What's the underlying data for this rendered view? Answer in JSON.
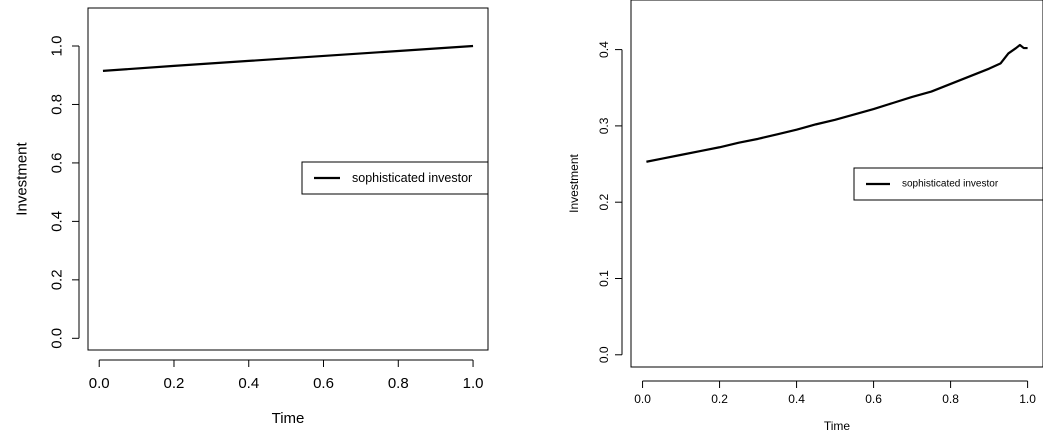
{
  "chart_data": [
    {
      "type": "line",
      "title": "",
      "xlabel": "Time",
      "ylabel": "Investment",
      "xlim": [
        -0.03,
        1.04
      ],
      "ylim": [
        -0.04,
        1.13
      ],
      "xticks": [
        0.0,
        0.2,
        0.4,
        0.6,
        0.8,
        1.0
      ],
      "xtick_labels": [
        "0.0",
        "0.2",
        "0.4",
        "0.6",
        "0.8",
        "1.0"
      ],
      "yticks": [
        0.0,
        0.2,
        0.4,
        0.6,
        0.8,
        1.0
      ],
      "ytick_labels": [
        "0.0",
        "0.2",
        "0.4",
        "0.6",
        "0.8",
        "1.0"
      ],
      "grid": false,
      "legend": "right",
      "series": [
        {
          "name": "sophisticated investor",
          "color": "#000000",
          "x": [
            0.01,
            0.2,
            0.4,
            0.6,
            0.8,
            1.0
          ],
          "y": [
            0.915,
            0.932,
            0.949,
            0.966,
            0.983,
            1.0
          ]
        }
      ]
    },
    {
      "type": "line",
      "title": "",
      "xlabel": "Time",
      "ylabel": "Investment",
      "xlim": [
        -0.03,
        1.04
      ],
      "ylim": [
        -0.016,
        0.465
      ],
      "xticks": [
        0.0,
        0.2,
        0.4,
        0.6,
        0.8,
        1.0
      ],
      "xtick_labels": [
        "0.0",
        "0.2",
        "0.4",
        "0.6",
        "0.8",
        "1.0"
      ],
      "yticks": [
        0.0,
        0.1,
        0.2,
        0.3,
        0.4
      ],
      "ytick_labels": [
        "0.0",
        "0.1",
        "0.2",
        "0.3",
        "0.4"
      ],
      "grid": false,
      "legend": "right",
      "series": [
        {
          "name": "sophisticated investor",
          "color": "#000000",
          "x": [
            0.01,
            0.05,
            0.1,
            0.15,
            0.2,
            0.25,
            0.3,
            0.35,
            0.4,
            0.45,
            0.5,
            0.55,
            0.6,
            0.65,
            0.7,
            0.75,
            0.8,
            0.85,
            0.9,
            0.93,
            0.95,
            0.97,
            0.98,
            0.99,
            1.0
          ],
          "y": [
            0.253,
            0.257,
            0.262,
            0.267,
            0.272,
            0.278,
            0.283,
            0.289,
            0.295,
            0.302,
            0.308,
            0.315,
            0.322,
            0.33,
            0.338,
            0.345,
            0.355,
            0.365,
            0.375,
            0.382,
            0.395,
            0.402,
            0.406,
            0.402,
            0.402
          ]
        }
      ]
    }
  ]
}
